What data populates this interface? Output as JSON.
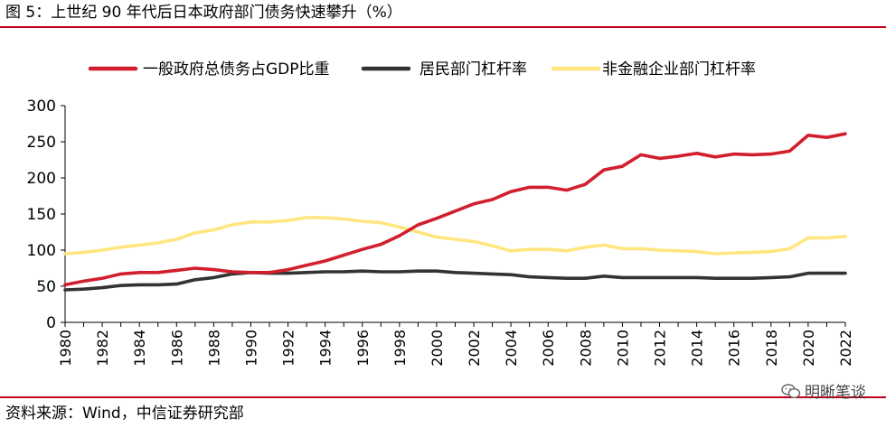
{
  "page": {
    "title": "图 5：上世纪 90 年代后日本政府部门债务快速攀升（%）",
    "source": "资料来源：Wind，中信证券研究部",
    "watermark": "明晰笔谈"
  },
  "colors": {
    "accent_rule": "#c0001b",
    "gov": "#d21f2d",
    "household": "#333333",
    "corporate": "#ffe680"
  },
  "chart_data": {
    "type": "line",
    "title": "",
    "xlabel": "",
    "ylabel": "",
    "ylim": [
      0,
      300
    ],
    "yticks": [
      0,
      50,
      100,
      150,
      200,
      250,
      300
    ],
    "xticks": [
      1980,
      1982,
      1984,
      1986,
      1988,
      1990,
      1992,
      1994,
      1996,
      1998,
      2000,
      2002,
      2004,
      2006,
      2008,
      2010,
      2012,
      2014,
      2016,
      2018,
      2020,
      2022
    ],
    "grid": false,
    "legend_position": "top",
    "x": [
      1980,
      1981,
      1982,
      1983,
      1984,
      1985,
      1986,
      1987,
      1988,
      1989,
      1990,
      1991,
      1992,
      1993,
      1994,
      1995,
      1996,
      1997,
      1998,
      1999,
      2000,
      2001,
      2002,
      2003,
      2004,
      2005,
      2006,
      2007,
      2008,
      2009,
      2010,
      2011,
      2012,
      2013,
      2014,
      2015,
      2016,
      2017,
      2018,
      2019,
      2020,
      2021,
      2022
    ],
    "series": [
      {
        "name": "一般政府总债务占GDP比重",
        "color": "#d21f2d",
        "values": [
          52,
          57,
          61,
          67,
          69,
          69,
          72,
          75,
          73,
          70,
          69,
          69,
          73,
          79,
          85,
          93,
          101,
          108,
          120,
          135,
          144,
          154,
          164,
          170,
          181,
          187,
          187,
          183,
          191,
          211,
          216,
          232,
          227,
          230,
          234,
          229,
          233,
          232,
          233,
          237,
          259,
          256,
          261
        ]
      },
      {
        "name": "居民部门杠杆率",
        "color": "#333333",
        "values": [
          45,
          46,
          48,
          51,
          52,
          52,
          53,
          59,
          62,
          67,
          69,
          68,
          68,
          69,
          70,
          70,
          71,
          70,
          70,
          71,
          71,
          69,
          68,
          67,
          66,
          63,
          62,
          61,
          61,
          64,
          62,
          62,
          62,
          62,
          62,
          61,
          61,
          61,
          62,
          63,
          68,
          68,
          68
        ]
      },
      {
        "name": "非金融企业部门杠杆率",
        "color": "#ffe680",
        "values": [
          95,
          97,
          100,
          104,
          107,
          110,
          115,
          124,
          128,
          135,
          139,
          139,
          141,
          145,
          145,
          143,
          140,
          138,
          132,
          125,
          118,
          115,
          112,
          106,
          99,
          101,
          101,
          99,
          104,
          107,
          102,
          102,
          100,
          99,
          98,
          95,
          96,
          97,
          98,
          102,
          117,
          117,
          119
        ]
      }
    ]
  }
}
